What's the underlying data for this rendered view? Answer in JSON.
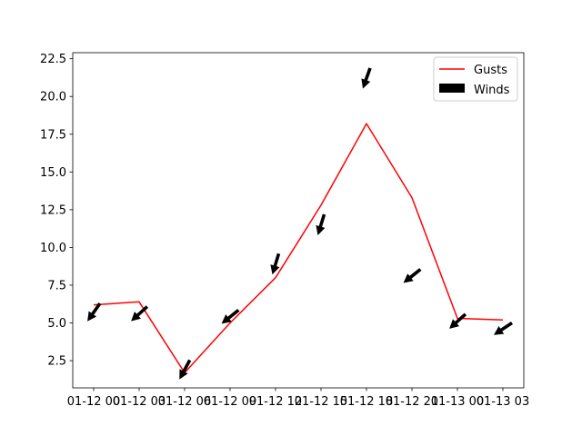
{
  "chart_data": {
    "type": "line",
    "x": [
      "01-12 00",
      "01-12 03",
      "01-12 06",
      "01-12 09",
      "01-12 12",
      "01-12 15",
      "01-12 18",
      "01-12 21",
      "01-13 00",
      "01-13 03"
    ],
    "xticks": [
      "01-12 00",
      "01-12 03",
      "01-12 06",
      "01-12 09",
      "01-12 12",
      "01-12 15",
      "01-12 18",
      "01-12 21",
      "01-13 00",
      "01-13 03"
    ],
    "series": [
      {
        "name": "Gusts",
        "kind": "line",
        "color": "#ff0000",
        "values": [
          6.2,
          6.4,
          1.7,
          5.0,
          8.0,
          12.8,
          18.2,
          13.3,
          5.3,
          5.2
        ]
      },
      {
        "name": "Winds",
        "kind": "quiver",
        "color": "#000000",
        "y": [
          5.7,
          5.6,
          1.9,
          5.4,
          8.9,
          11.5,
          21.2,
          8.1,
          5.1,
          4.6
        ],
        "u": [
          -0.7,
          -1.0,
          -0.7,
          -1.0,
          -0.4,
          -0.4,
          -0.5,
          -1.0,
          -1.0,
          -1.2
        ],
        "v": [
          -1.0,
          -0.9,
          -1.3,
          -0.8,
          -1.3,
          -1.3,
          -1.4,
          -0.8,
          -0.9,
          -0.8
        ]
      }
    ],
    "yticks": [
      2.5,
      5.0,
      7.5,
      10.0,
      12.5,
      15.0,
      17.5,
      20.0,
      22.5
    ],
    "ylim": [
      0.7,
      22.9
    ],
    "legend": {
      "placement": "top-right",
      "entries": [
        "Gusts",
        "Winds"
      ]
    },
    "grid": false
  }
}
